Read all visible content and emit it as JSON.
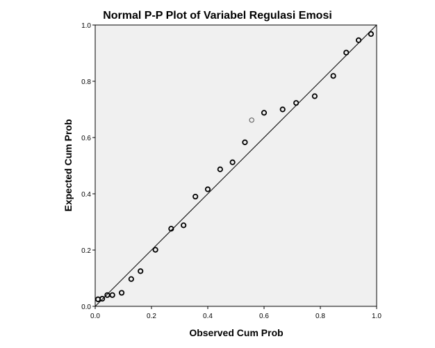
{
  "chart_data": {
    "type": "scatter",
    "title": "Normal P-P Plot of Variabel Regulasi Emosi",
    "xlabel": "Observed Cum Prob",
    "ylabel": "Expected Cum Prob",
    "xlim": [
      0.0,
      1.0
    ],
    "ylim": [
      0.0,
      1.0
    ],
    "xticks": [
      "0.0",
      "0.2",
      "0.4",
      "0.6",
      "0.8",
      "1.0"
    ],
    "yticks": [
      "0.0",
      "0.2",
      "0.4",
      "0.6",
      "0.8",
      "1.0"
    ],
    "grid": false,
    "reference_line": [
      [
        0.0,
        0.0
      ],
      [
        1.0,
        1.0
      ]
    ],
    "points": [
      {
        "x": 0.01,
        "y": 0.025
      },
      {
        "x": 0.025,
        "y": 0.027
      },
      {
        "x": 0.043,
        "y": 0.04
      },
      {
        "x": 0.061,
        "y": 0.04
      },
      {
        "x": 0.094,
        "y": 0.048
      },
      {
        "x": 0.128,
        "y": 0.097
      },
      {
        "x": 0.161,
        "y": 0.125
      },
      {
        "x": 0.214,
        "y": 0.201
      },
      {
        "x": 0.27,
        "y": 0.276
      },
      {
        "x": 0.314,
        "y": 0.288
      },
      {
        "x": 0.356,
        "y": 0.39
      },
      {
        "x": 0.4,
        "y": 0.416
      },
      {
        "x": 0.444,
        "y": 0.487
      },
      {
        "x": 0.488,
        "y": 0.512
      },
      {
        "x": 0.532,
        "y": 0.583
      },
      {
        "x": 0.556,
        "y": 0.662,
        "hollow": true
      },
      {
        "x": 0.6,
        "y": 0.688
      },
      {
        "x": 0.666,
        "y": 0.7
      },
      {
        "x": 0.714,
        "y": 0.723
      },
      {
        "x": 0.78,
        "y": 0.747
      },
      {
        "x": 0.846,
        "y": 0.819
      },
      {
        "x": 0.892,
        "y": 0.902
      },
      {
        "x": 0.936,
        "y": 0.946
      },
      {
        "x": 0.98,
        "y": 0.968
      }
    ]
  },
  "colors": {
    "plot_background": "#f0f0f0",
    "marker_edge": "#000000",
    "marker_edge_light": "#555555",
    "reference_line": "#000000"
  }
}
